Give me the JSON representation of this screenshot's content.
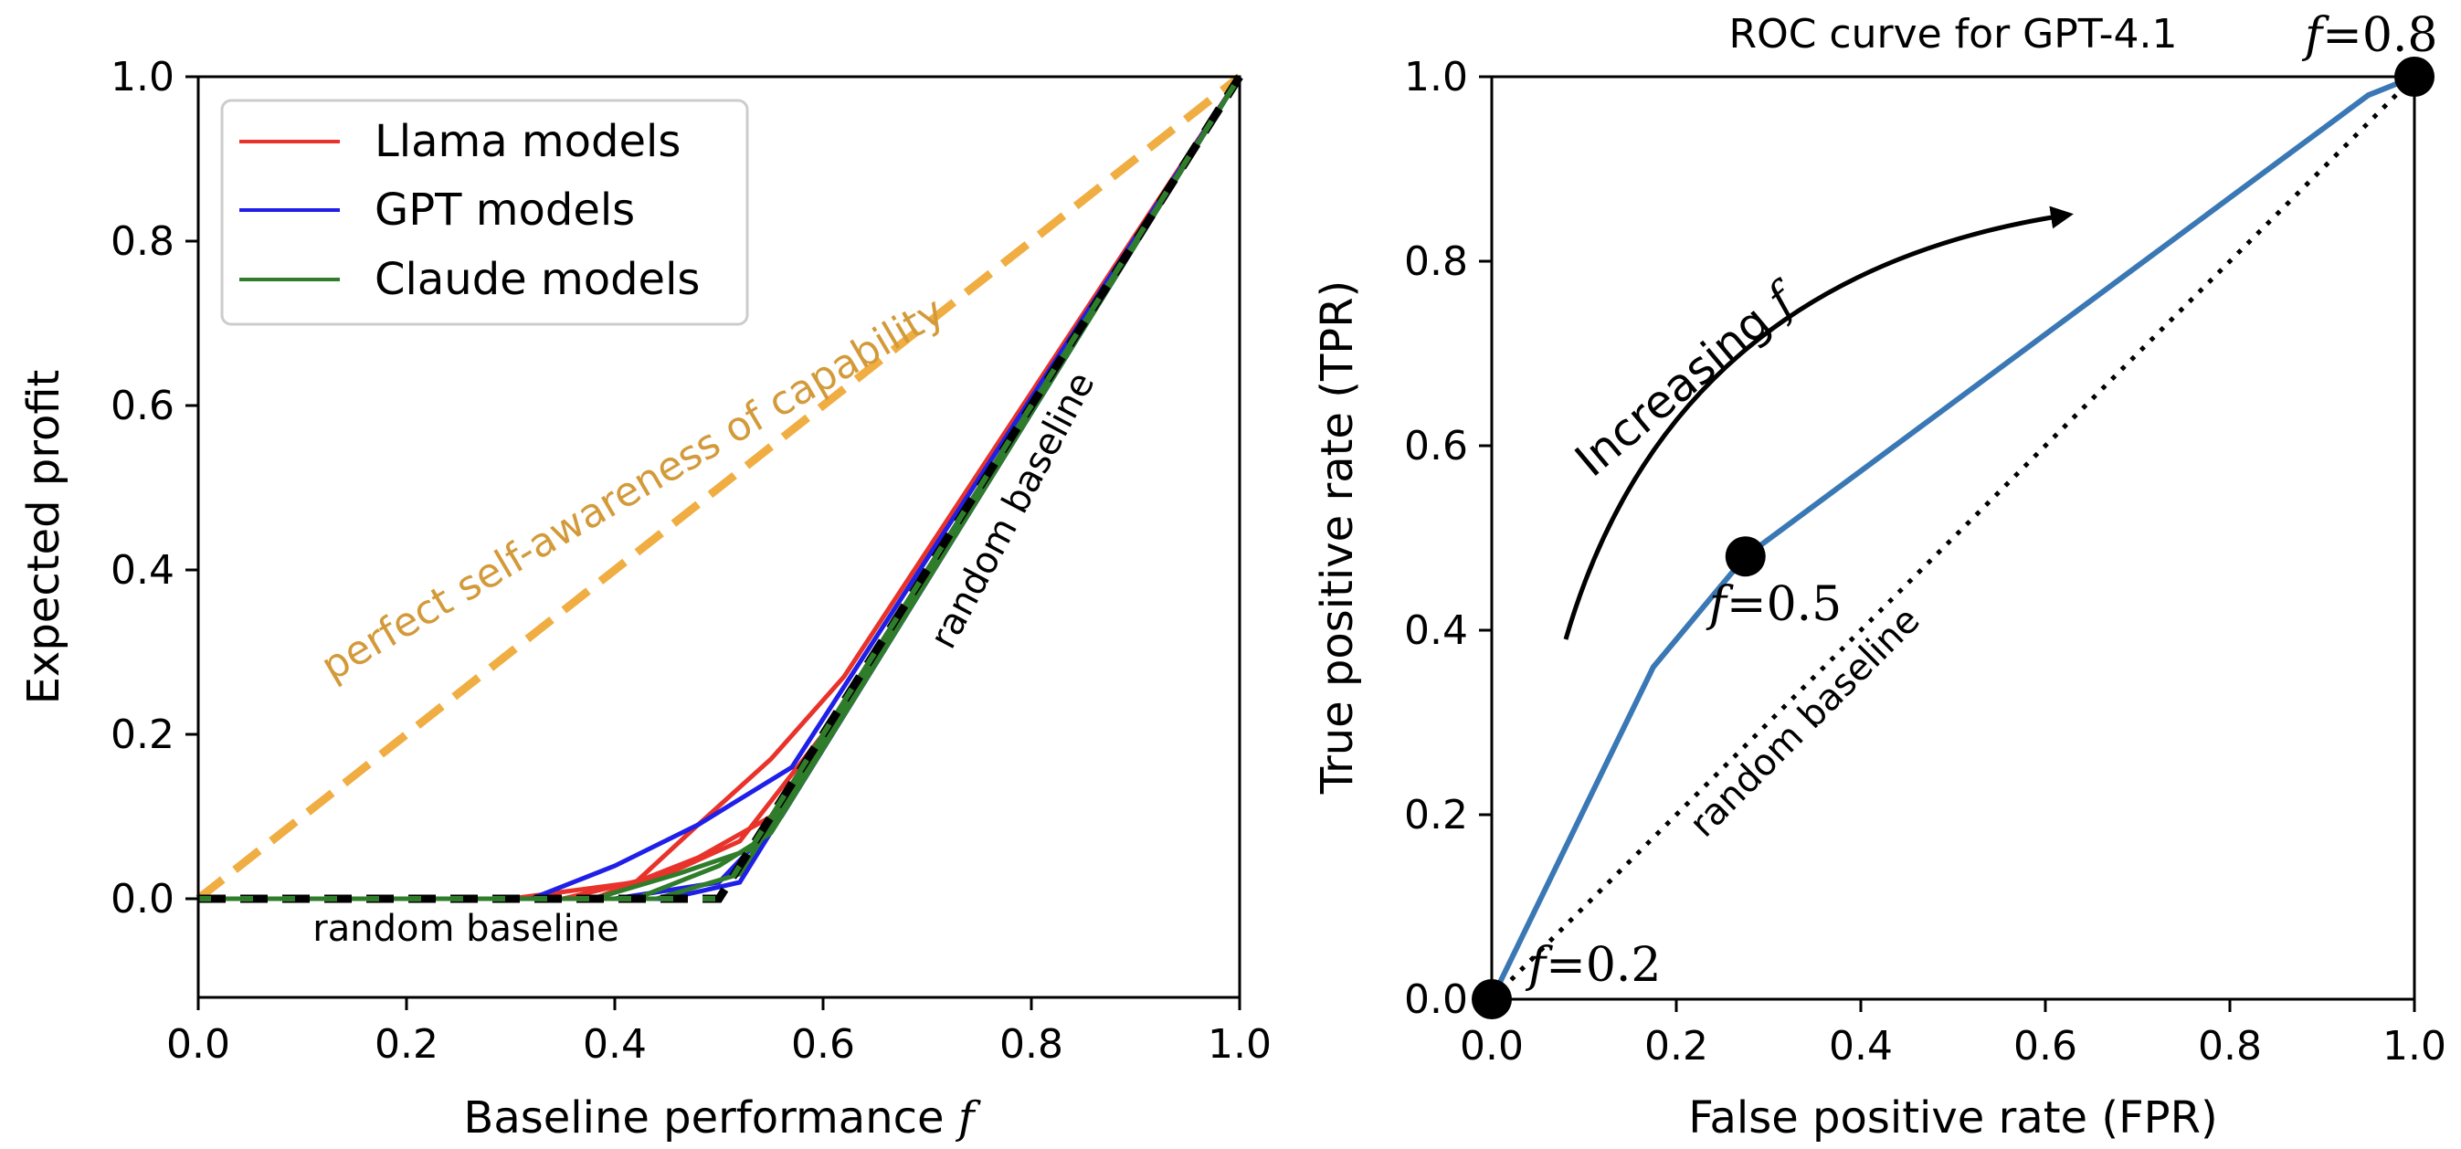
{
  "chart_data": [
    {
      "type": "line",
      "title": "",
      "xlabel": "Baseline performance",
      "xlabel_var": "f",
      "ylabel": "Expected profit",
      "xlim": [
        0.0,
        1.0
      ],
      "ylim": [
        -0.12,
        1.0
      ],
      "xticks": [
        "0.0",
        "0.2",
        "0.4",
        "0.6",
        "0.8",
        "1.0"
      ],
      "yticks": [
        "0.0",
        "0.2",
        "0.4",
        "0.6",
        "0.8",
        "1.0"
      ],
      "legend": {
        "position": "upper-left",
        "entries": [
          {
            "label": "Llama models",
            "color": "#e8332b"
          },
          {
            "label": "GPT models",
            "color": "#1f1fe8"
          },
          {
            "label": "Claude models",
            "color": "#2f7d2b"
          }
        ]
      },
      "series": [
        {
          "name": "Llama models",
          "color": "#e8332b",
          "lines": [
            {
              "x": [
                0,
                0.3,
                0.42,
                0.48,
                0.55,
                0.62,
                1.0
              ],
              "y": [
                0,
                0,
                0.02,
                0.09,
                0.17,
                0.27,
                1.0
              ]
            },
            {
              "x": [
                0,
                0.35,
                0.45,
                0.52,
                0.6,
                1.0
              ],
              "y": [
                0,
                0,
                0.03,
                0.07,
                0.2,
                1.0
              ]
            },
            {
              "x": [
                0,
                0.38,
                0.48,
                0.55,
                1.0
              ],
              "y": [
                0,
                0,
                0.05,
                0.1,
                1.0
              ]
            }
          ]
        },
        {
          "name": "GPT models",
          "color": "#1f1fe8",
          "lines": [
            {
              "x": [
                0,
                0.32,
                0.4,
                0.48,
                0.57,
                1.0
              ],
              "y": [
                0,
                0,
                0.04,
                0.09,
                0.16,
                1.0
              ]
            },
            {
              "x": [
                0,
                0.4,
                0.5,
                0.56,
                1.0
              ],
              "y": [
                0,
                0,
                0.02,
                0.1,
                1.0
              ]
            },
            {
              "x": [
                0,
                0.45,
                0.52,
                1.0
              ],
              "y": [
                0,
                0,
                0.02,
                1.0
              ]
            }
          ]
        },
        {
          "name": "Claude models",
          "color": "#2f7d2b",
          "lines": [
            {
              "x": [
                0,
                0.38,
                0.46,
                0.53,
                1.0
              ],
              "y": [
                0,
                0,
                0.03,
                0.06,
                1.0
              ]
            },
            {
              "x": [
                0,
                0.42,
                0.5,
                0.55,
                1.0
              ],
              "y": [
                0,
                0,
                0.04,
                0.08,
                1.0
              ]
            },
            {
              "x": [
                0,
                0.44,
                0.52,
                1.0
              ],
              "y": [
                0,
                0,
                0.03,
                1.0
              ]
            }
          ]
        }
      ],
      "reference_lines": [
        {
          "name": "perfect self-awareness of capability",
          "color": "#f0ad42",
          "style": "dashed",
          "x": [
            0,
            1
          ],
          "y": [
            0,
            1
          ]
        },
        {
          "name": "random baseline",
          "color": "#000000",
          "style": "dashed",
          "x": [
            0,
            0.5,
            1.0
          ],
          "y": [
            0,
            0,
            1.0
          ]
        }
      ],
      "annotations": [
        {
          "text": "perfect self-awareness of capability",
          "color": "#d39a3a"
        },
        {
          "text": "random baseline"
        },
        {
          "text": "random baseline"
        }
      ]
    },
    {
      "type": "line",
      "title": "ROC curve for GPT-4.1",
      "xlabel": "False positive rate (FPR)",
      "ylabel": "True positive rate (TPR)",
      "xlim": [
        0.0,
        1.0
      ],
      "ylim": [
        0.0,
        1.0
      ],
      "xticks": [
        "0.0",
        "0.2",
        "0.4",
        "0.6",
        "0.8",
        "1.0"
      ],
      "yticks": [
        "0.0",
        "0.2",
        "0.4",
        "0.6",
        "0.8",
        "1.0"
      ],
      "series": [
        {
          "name": "ROC",
          "color": "#3a78b5",
          "x": [
            0.0,
            0.175,
            0.275,
            0.95,
            1.0
          ],
          "y": [
            0.0,
            0.36,
            0.48,
            0.98,
            1.0
          ]
        }
      ],
      "reference_lines": [
        {
          "name": "random baseline",
          "style": "dotted",
          "color": "#000000",
          "x": [
            0,
            1
          ],
          "y": [
            0,
            1
          ]
        }
      ],
      "marked_points": [
        {
          "x": 0.0,
          "y": 0.0,
          "label": "=0.2"
        },
        {
          "x": 0.275,
          "y": 0.48,
          "label": "=0.5"
        },
        {
          "x": 1.0,
          "y": 1.0,
          "label": "=0.8"
        }
      ],
      "point_label_var": "f",
      "arrow_annotation": {
        "text": "Increasing",
        "var": "f",
        "from": [
          0.08,
          0.39
        ],
        "to": [
          0.63,
          0.85
        ]
      },
      "annotations": [
        {
          "text": "random baseline"
        }
      ]
    }
  ]
}
